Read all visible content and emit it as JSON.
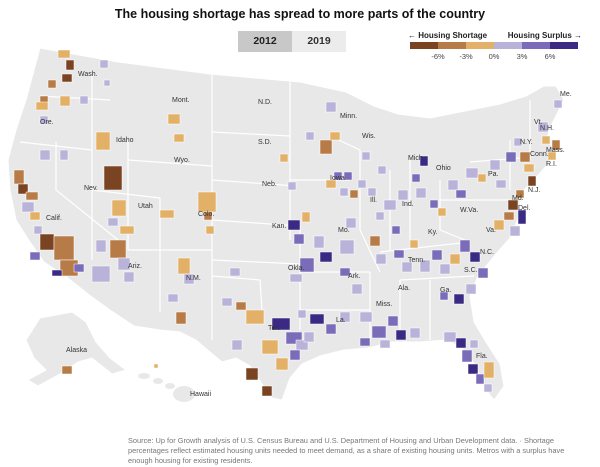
{
  "header": {
    "title": "The housing shortage has spread to more parts of the country",
    "year_buttons": [
      {
        "label": "2012",
        "selected": true
      },
      {
        "label": "2019",
        "selected": false
      }
    ]
  },
  "legend": {
    "left_label": "← Housing Shortage",
    "right_label": "Housing Surplus →",
    "ticks": [
      "-6%",
      "-3%",
      "0%",
      "3%",
      "6%"
    ],
    "colors": [
      "#7a4422",
      "#b77b47",
      "#e2b066",
      "#b9b2d9",
      "#7a6cb8",
      "#3a2a84"
    ]
  },
  "map": {
    "land_color": "#e8e8e8",
    "border_color": "#ffffff",
    "state_labels": [
      "Wash.",
      "Ore.",
      "Calif.",
      "Nev.",
      "Idaho",
      "Mont.",
      "Wyo.",
      "Utah",
      "Ariz.",
      "Colo.",
      "N.M.",
      "N.D.",
      "S.D.",
      "Neb.",
      "Kan.",
      "Okla.",
      "Tex.",
      "Minn.",
      "Iowa",
      "Mo.",
      "Ark.",
      "La.",
      "Wis.",
      "Ill.",
      "Mich.",
      "Ind.",
      "Ohio",
      "Ky.",
      "Tenn.",
      "Miss.",
      "Ala.",
      "Ga.",
      "Fla.",
      "S.C.",
      "N.C.",
      "Va.",
      "W.Va.",
      "Pa.",
      "N.Y.",
      "Md.",
      "Del.",
      "N.J.",
      "Conn.",
      "R.I.",
      "Mass.",
      "Vt.",
      "N.H.",
      "Me.",
      "Alaska",
      "Hawaii"
    ]
  },
  "footer": {
    "source": "Source: Up for Growth analysis of U.S. Census Bureau and U.S. Department of Housing and Urban Development data.  ·  Shortage percentages reflect estimated housing units needed to meet demand, as a share of existing housing units. Metros with a surplus have enough housing for existing residents."
  }
}
